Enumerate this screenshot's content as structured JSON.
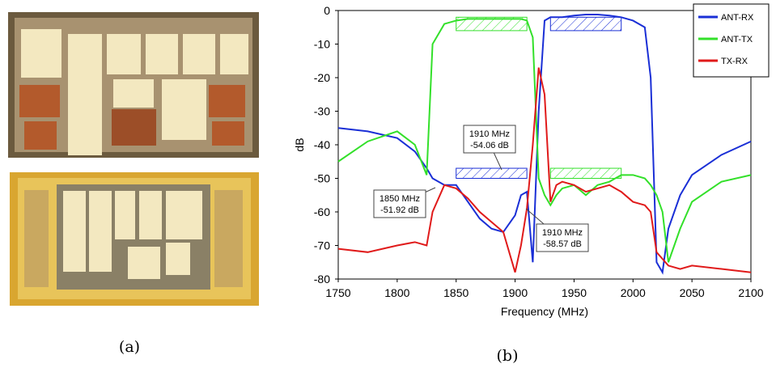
{
  "panel_a": {
    "label": "(a)"
  },
  "panel_b": {
    "label": "(b)"
  },
  "chart_data": {
    "type": "line",
    "x_label": "Frequency (MHz)",
    "y_label": "dB",
    "xlim": [
      1750,
      2100
    ],
    "xticks": [
      1750,
      1800,
      1850,
      1900,
      1950,
      2000,
      2050,
      2100
    ],
    "ylim": [
      -80,
      0
    ],
    "yticks": [
      0,
      -10,
      -20,
      -30,
      -40,
      -50,
      -60,
      -70,
      -80
    ],
    "legend": "top-right",
    "x": [
      1750,
      1775,
      1800,
      1815,
      1825,
      1830,
      1840,
      1850,
      1860,
      1870,
      1880,
      1890,
      1900,
      1905,
      1910,
      1915,
      1920,
      1925,
      1930,
      1935,
      1940,
      1950,
      1960,
      1970,
      1980,
      1990,
      2000,
      2010,
      2015,
      2020,
      2025,
      2030,
      2040,
      2050,
      2075,
      2100
    ],
    "series": [
      {
        "name": "ANT-RX",
        "color": "#1a2fd6",
        "values": [
          -35,
          -36,
          -38,
          -42,
          -47,
          -50,
          -52,
          -52,
          -57,
          -62,
          -65,
          -66,
          -61,
          -55,
          -54,
          -75,
          -30,
          -3,
          -2,
          -2,
          -2,
          -1.5,
          -1.2,
          -1.2,
          -1.5,
          -2,
          -3,
          -5,
          -20,
          -75,
          -78,
          -65,
          -55,
          -49,
          -43,
          -39
        ]
      },
      {
        "name": "ANT-TX",
        "color": "#33e02a",
        "values": [
          -45,
          -39,
          -36,
          -40,
          -49,
          -10,
          -4,
          -3,
          -2.5,
          -2.5,
          -2.5,
          -2.5,
          -2.5,
          -2.5,
          -3,
          -8,
          -50,
          -55,
          -58,
          -55,
          -53,
          -52,
          -55,
          -52,
          -51,
          -49,
          -49,
          -50,
          -52,
          -55,
          -60,
          -75,
          -65,
          -57,
          -51,
          -49
        ]
      },
      {
        "name": "TX-RX",
        "color": "#e01a1a",
        "values": [
          -71,
          -72,
          -70,
          -69,
          -70,
          -60,
          -52,
          -53,
          -56,
          -60,
          -63,
          -66,
          -78,
          -70,
          -59,
          -40,
          -17,
          -25,
          -57,
          -52,
          -51,
          -52,
          -54,
          -53,
          -52,
          -54,
          -57,
          -58,
          -60,
          -72,
          -74,
          -76,
          -77,
          -76,
          -77,
          -78
        ]
      }
    ],
    "masks": [
      {
        "x": [
          1850,
          1910
        ],
        "y": [
          -2,
          -6
        ],
        "color": "#33e02a"
      },
      {
        "x": [
          1930,
          1990
        ],
        "y": [
          -2,
          -6
        ],
        "color": "#1a2fd6"
      },
      {
        "x": [
          1850,
          1910
        ],
        "y": [
          -47,
          -50
        ],
        "color": "#1a2fd6"
      },
      {
        "x": [
          1930,
          1990
        ],
        "y": [
          -47,
          -50
        ],
        "color": "#33e02a"
      }
    ],
    "annotations": [
      {
        "lines": [
          "1910 MHz",
          "-54.06 dB"
        ]
      },
      {
        "lines": [
          "1850 MHz",
          "-51.92 dB"
        ]
      },
      {
        "lines": [
          "1910 MHz",
          "-58.57 dB"
        ]
      }
    ]
  }
}
